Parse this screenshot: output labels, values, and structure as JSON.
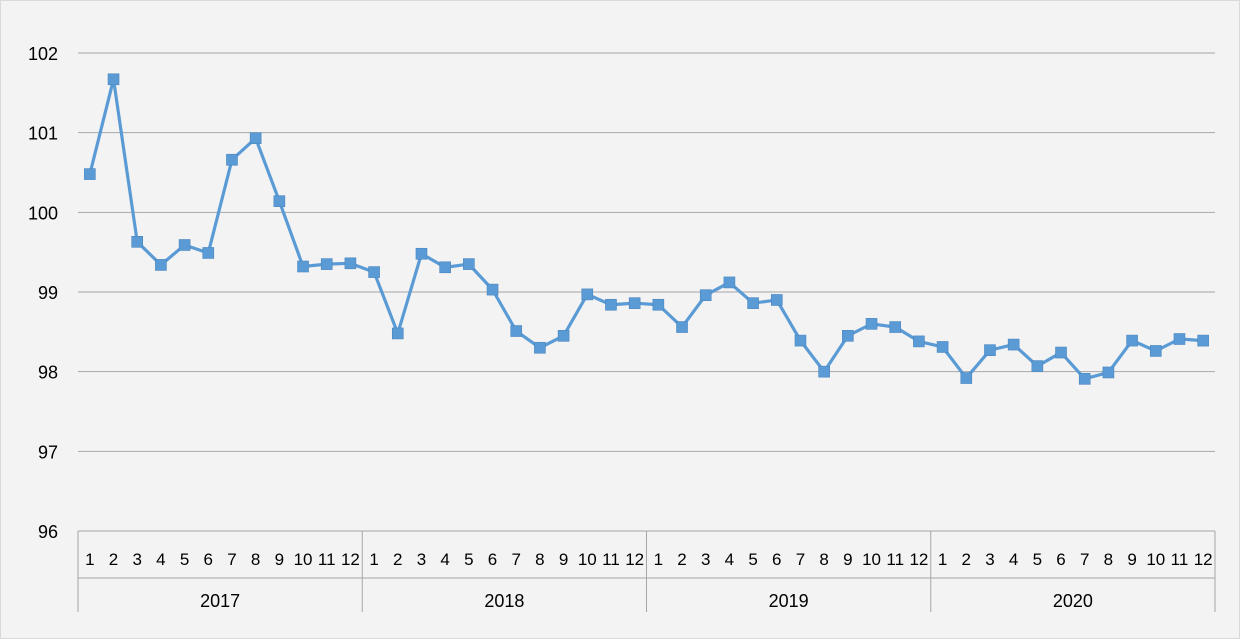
{
  "chart_data": {
    "type": "line",
    "title": "",
    "xlabel": "",
    "ylabel": "",
    "ylim": [
      96,
      102
    ],
    "yticks": [
      96,
      97,
      98,
      99,
      100,
      101,
      102
    ],
    "grid": true,
    "legend": "none",
    "years": [
      "2017",
      "2018",
      "2019",
      "2020"
    ],
    "months": [
      "1",
      "2",
      "3",
      "4",
      "5",
      "6",
      "7",
      "8",
      "9",
      "10",
      "11",
      "12"
    ],
    "series": [
      {
        "color": "#5b9bd5",
        "marker": "square",
        "values": [
          100.48,
          101.67,
          99.63,
          99.34,
          99.59,
          99.49,
          100.66,
          100.93,
          100.14,
          99.32,
          99.35,
          99.36,
          99.25,
          98.48,
          99.48,
          99.31,
          99.35,
          99.03,
          98.51,
          98.3,
          98.45,
          98.97,
          98.84,
          98.86,
          98.84,
          98.56,
          98.96,
          99.12,
          98.86,
          98.9,
          98.39,
          98.0,
          98.45,
          98.6,
          98.56,
          98.38,
          98.31,
          97.92,
          98.27,
          98.34,
          98.07,
          98.24,
          97.91,
          97.99,
          98.39,
          98.26,
          98.41,
          98.39
        ]
      }
    ]
  },
  "colors": {
    "background": "#f3f3f3",
    "gridline": "#a6a6a6",
    "line": "#5b9bd5"
  }
}
